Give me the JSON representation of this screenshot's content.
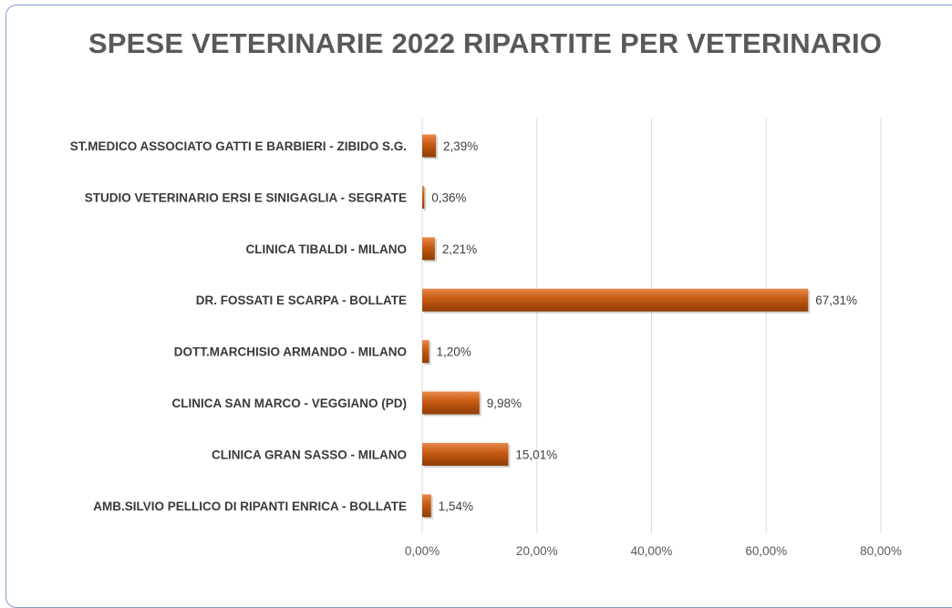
{
  "colors": {
    "bar": "#c55a11",
    "bar_dark": "#8f3d08",
    "bar_light": "#e8884a",
    "frame": "#7f9fc4"
  },
  "chart_data": {
    "type": "bar",
    "orientation": "horizontal",
    "title": "SPESE VETERINARIE 2022 RIPARTITE PER VETERINARIO",
    "categories": [
      "ST.MEDICO ASSOCIATO GATTI E BARBIERI - ZIBIDO S.G.",
      "STUDIO VETERINARIO ERSI E SINIGAGLIA - SEGRATE",
      "CLINICA TIBALDI - MILANO",
      "DR. FOSSATI E SCARPA - BOLLATE",
      "DOTT.MARCHISIO ARMANDO - MILANO",
      "CLINICA SAN MARCO - VEGGIANO (PD)",
      "CLINICA GRAN SASSO - MILANO",
      "AMB.SILVIO PELLICO DI RIPANTI ENRICA - BOLLATE"
    ],
    "values": [
      2.39,
      0.36,
      2.21,
      67.31,
      1.2,
      9.98,
      15.01,
      1.54
    ],
    "data_labels": [
      "2,39%",
      "0,36%",
      "2,21%",
      "67,31%",
      "1,20%",
      "9,98%",
      "15,01%",
      "1,54%"
    ],
    "xlim": [
      0,
      80
    ],
    "xticks": [
      0,
      20,
      40,
      60,
      80
    ],
    "xtick_labels": [
      "0,00%",
      "20,00%",
      "40,00%",
      "60,00%",
      "80,00%"
    ],
    "grid": true,
    "legend": "none"
  }
}
